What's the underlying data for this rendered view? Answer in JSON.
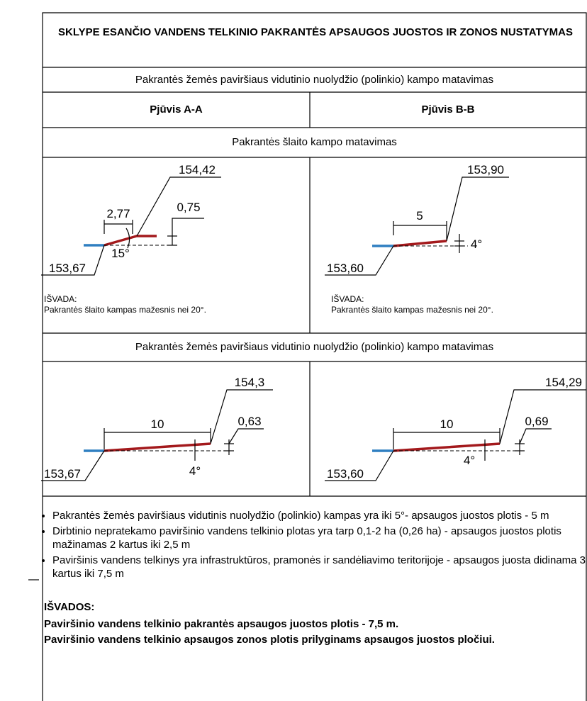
{
  "title": "SKLYPE ESANČIO VANDENS TELKINIO PAKRANTĖS APSAUGOS JUOSTOS IR ZONOS NUSTATYMAS",
  "row1": "Pakrantės žemės paviršiaus vidutinio nuolydžio (polinkio) kampo matavimas",
  "section_a": "Pjūvis A-A",
  "section_b": "Pjūvis B-B",
  "row3": "Pakrantės šlaito kampo matavimas",
  "slope_a": {
    "top": "154,42",
    "length": "2,77",
    "height": "0,75",
    "angle": "15°",
    "bottom": "153,67",
    "conclusion_title": "IŠVADA:",
    "conclusion": "Pakrantės šlaito kampas mažesnis nei 20°."
  },
  "slope_b": {
    "top": "153,90",
    "length": "5",
    "angle": "4°",
    "bottom": "153,60",
    "conclusion_title": "IŠVADA:",
    "conclusion": "Pakrantės šlaito kampas mažesnis nei 20°."
  },
  "row5": "Pakrantės žemės paviršiaus vidutinio nuolydžio (polinkio) kampo matavimas",
  "surface_a": {
    "top": "154,3",
    "length": "10",
    "height": "0,63",
    "angle": "4°",
    "bottom": "153,67"
  },
  "surface_b": {
    "top": "154,29",
    "length": "10",
    "height": "0,69",
    "angle": "4°",
    "bottom": "153,60"
  },
  "bullets": [
    "Pakrantės žemės paviršiaus vidutinis nuolydžio (polinkio) kampas yra iki 5°- apsaugos juostos plotis - 5 m",
    "Dirbtinio nepratekamo paviršinio vandens telkinio  plotas yra tarp 0,1-2 ha (0,26 ha) - apsaugos juostos plotis mažinamas 2 kartus iki 2,5 m",
    "Paviršinis vandens telkinys yra infrastruktūros, pramonės ir sandėliavimo teritorijoje -  apsaugos juosta didinama 3 kartus iki 7,5 m"
  ],
  "conclusions_title": "IŠVADOS:",
  "conclusions": [
    "Paviršinio vandens telkinio pakrantės apsaugos juostos  plotis - 7,5 m.",
    "Paviršinio vandens telkinio apsaugos zonos plotis prilyginams apsaugos juostos pločiui."
  ]
}
